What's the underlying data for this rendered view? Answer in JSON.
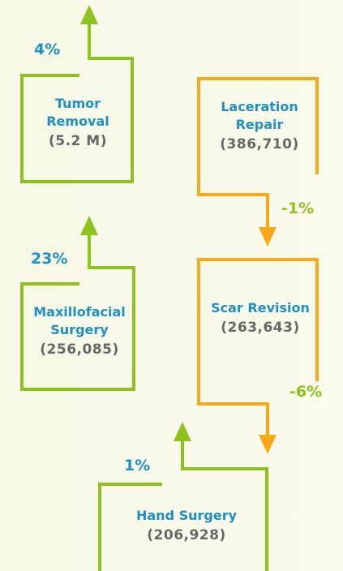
{
  "items": [
    {
      "name": "Tumor Removal",
      "count": "(5.2 M)",
      "change": "4%"
    },
    {
      "name": "Laceration Repair",
      "count": "(386,710)",
      "change": "-1%"
    },
    {
      "name": "Maxillofacial Surgery",
      "count": "(256,085)",
      "change": "23%"
    },
    {
      "name": "Scar Revision",
      "count": "(263,643)",
      "change": "-6%"
    },
    {
      "name": "Hand Surgery",
      "count": "(206,928)",
      "change": "1%"
    }
  ]
}
